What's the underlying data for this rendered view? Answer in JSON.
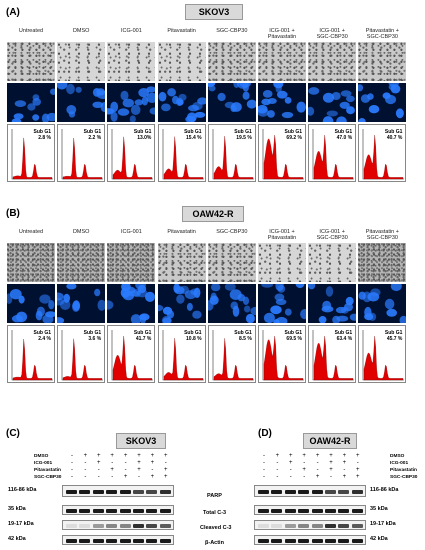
{
  "panel_a": {
    "label": "(A)",
    "title": "SKOV3",
    "columns": [
      "Untreated",
      "DMSO",
      "ICG-001",
      "Pitavastatin",
      "SGC-CBP30",
      "ICG-001 +\nPitavastatin",
      "ICG-001 +\nSGC-CBP30",
      "Pitavastatin +\nSGC-CBP30"
    ],
    "sub_g1_label": "Sub G1",
    "sub_g1": [
      "2.8 %",
      "2.2 %",
      "13.0%",
      "15.4 %",
      "19.5 %",
      "69.2 %",
      "47.0 %",
      "40.7 %"
    ]
  },
  "panel_b": {
    "label": "(B)",
    "title": "OAW42-R",
    "columns": [
      "Untreated",
      "DMSO",
      "ICG-001",
      "Pitavastatin",
      "SGC-CBP30",
      "ICG-001 +\nPitavastatin",
      "ICG-001 +\nSGC-CBP30",
      "Pitavastatin +\nSGC-CBP30"
    ],
    "sub_g1_label": "Sub G1",
    "sub_g1": [
      "2.4 %",
      "3.6 %",
      "41.7 %",
      "10.8 %",
      "8.5 %",
      "69.5 %",
      "63.4 %",
      "45.7 %"
    ]
  },
  "panel_c": {
    "label": "(C)",
    "title": "SKOV3",
    "conditions": [
      "DMSO",
      "ICG-001",
      "Pitavastatin",
      "SGC-CBP30"
    ],
    "signs": [
      [
        "-",
        "+",
        "+",
        "+",
        "+",
        "+",
        "+",
        "+"
      ],
      [
        "-",
        "-",
        "+",
        "-",
        "-",
        "+",
        "+",
        "-"
      ],
      [
        "-",
        "-",
        "-",
        "+",
        "-",
        "+",
        "-",
        "+"
      ],
      [
        "-",
        "-",
        "-",
        "-",
        "+",
        "-",
        "+",
        "+"
      ]
    ],
    "sizes": [
      "116-86 kDa",
      "35 kDa",
      "19-17 kDa",
      "42 kDa"
    ]
  },
  "panel_d": {
    "label": "(D)",
    "title": "OAW42-R",
    "conditions": [
      "DMSO",
      "ICG-001",
      "Pitavastatin",
      "SGC-CBP30"
    ],
    "signs": [
      [
        "-",
        "+",
        "+",
        "+",
        "+",
        "+",
        "+",
        "+"
      ],
      [
        "-",
        "-",
        "+",
        "-",
        "-",
        "+",
        "+",
        "-"
      ],
      [
        "-",
        "-",
        "-",
        "+",
        "-",
        "+",
        "-",
        "+"
      ],
      [
        "-",
        "-",
        "-",
        "-",
        "+",
        "-",
        "+",
        "+"
      ]
    ],
    "sizes": [
      "116-86 kDa",
      "35 kDa",
      "19-17 kDa",
      "42 kDa"
    ]
  },
  "protein_labels": [
    "PARP",
    "Total C-3",
    "Cleaved C-3",
    "β-Actin"
  ],
  "colors": {
    "histogram_fill": "#e00000",
    "nuclei": "#2a7bff",
    "header_box": "#d9d9d9"
  }
}
